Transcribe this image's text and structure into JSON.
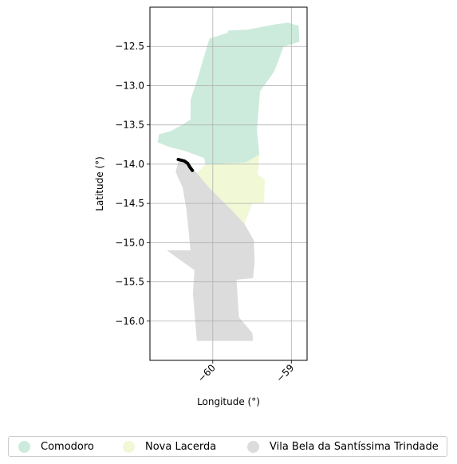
{
  "chart_data": {
    "type": "map",
    "xlabel": "Longitude (°)",
    "ylabel": "Latitude (°)",
    "xlim": [
      -60.8,
      -58.8
    ],
    "ylim": [
      -16.5,
      -12.0
    ],
    "x_ticks": [
      -60,
      -59
    ],
    "x_tick_labels": [
      "−60",
      "−59"
    ],
    "y_ticks": [
      -12.5,
      -13.0,
      -13.5,
      -14.0,
      -14.5,
      -15.0,
      -15.5,
      -16.0
    ],
    "y_tick_labels": [
      "−12.5",
      "−13.0",
      "−13.5",
      "−14.0",
      "−14.5",
      "−15.0",
      "−15.5",
      "−16.0"
    ],
    "grid": true,
    "legend_position": "bottom",
    "regions": [
      {
        "name": "Comodoro",
        "color": "#cdebdc",
        "polygon": [
          [
            -59.2,
            -12.22
          ],
          [
            -59.04,
            -12.2
          ],
          [
            -58.91,
            -12.24
          ],
          [
            -58.9,
            -12.44
          ],
          [
            -59.1,
            -12.5
          ],
          [
            -59.22,
            -12.82
          ],
          [
            -59.4,
            -13.07
          ],
          [
            -59.42,
            -13.31
          ],
          [
            -59.44,
            -13.57
          ],
          [
            -59.41,
            -13.88
          ],
          [
            -59.58,
            -13.98
          ],
          [
            -59.95,
            -14.0
          ],
          [
            -60.09,
            -14.0
          ],
          [
            -60.11,
            -13.92
          ],
          [
            -60.35,
            -13.83
          ],
          [
            -60.55,
            -13.78
          ],
          [
            -60.7,
            -13.72
          ],
          [
            -60.68,
            -13.62
          ],
          [
            -60.53,
            -13.58
          ],
          [
            -60.37,
            -13.49
          ],
          [
            -60.28,
            -13.43
          ],
          [
            -60.28,
            -13.18
          ],
          [
            -60.2,
            -12.94
          ],
          [
            -60.1,
            -12.6
          ],
          [
            -60.04,
            -12.4
          ],
          [
            -59.81,
            -12.33
          ],
          [
            -59.8,
            -12.3
          ],
          [
            -59.56,
            -12.29
          ]
        ]
      },
      {
        "name": "Nova Lacerda",
        "color": "#f0f8d5",
        "polygon": [
          [
            -60.09,
            -14.0
          ],
          [
            -59.95,
            -14.0
          ],
          [
            -59.58,
            -13.98
          ],
          [
            -59.41,
            -13.88
          ],
          [
            -59.43,
            -14.13
          ],
          [
            -59.34,
            -14.2
          ],
          [
            -59.35,
            -14.5
          ],
          [
            -59.5,
            -14.5
          ],
          [
            -59.6,
            -14.76
          ],
          [
            -59.75,
            -14.6
          ],
          [
            -59.9,
            -14.45
          ],
          [
            -60.05,
            -14.3
          ],
          [
            -60.2,
            -14.12
          ]
        ]
      },
      {
        "name": "Vila Bela da Santíssima Trindade",
        "color": "#dcdcdc",
        "polygon": [
          [
            -60.43,
            -13.95
          ],
          [
            -60.3,
            -14.0
          ],
          [
            -60.2,
            -14.12
          ],
          [
            -60.05,
            -14.3
          ],
          [
            -59.9,
            -14.45
          ],
          [
            -59.75,
            -14.6
          ],
          [
            -59.6,
            -14.76
          ],
          [
            -59.48,
            -14.97
          ],
          [
            -59.47,
            -15.25
          ],
          [
            -59.49,
            -15.45
          ],
          [
            -59.7,
            -15.47
          ],
          [
            -59.67,
            -15.95
          ],
          [
            -59.5,
            -16.15
          ],
          [
            -59.49,
            -16.25
          ],
          [
            -60.2,
            -16.25
          ],
          [
            -60.25,
            -15.65
          ],
          [
            -60.23,
            -15.35
          ],
          [
            -60.58,
            -15.1
          ],
          [
            -60.28,
            -15.1
          ],
          [
            -60.33,
            -14.6
          ],
          [
            -60.38,
            -14.3
          ],
          [
            -60.47,
            -14.1
          ]
        ]
      }
    ],
    "track": {
      "color": "#000000",
      "points": [
        [
          -60.44,
          -13.94
        ],
        [
          -60.36,
          -13.96
        ],
        [
          -60.32,
          -13.99
        ],
        [
          -60.29,
          -14.04
        ],
        [
          -60.26,
          -14.08
        ]
      ]
    }
  },
  "legend": {
    "items": [
      {
        "label": "Comodoro",
        "color": "#cdebdc"
      },
      {
        "label": "Nova Lacerda",
        "color": "#f0f8d5"
      },
      {
        "label": "Vila Bela da Santíssima Trindade",
        "color": "#dcdcdc"
      }
    ]
  }
}
